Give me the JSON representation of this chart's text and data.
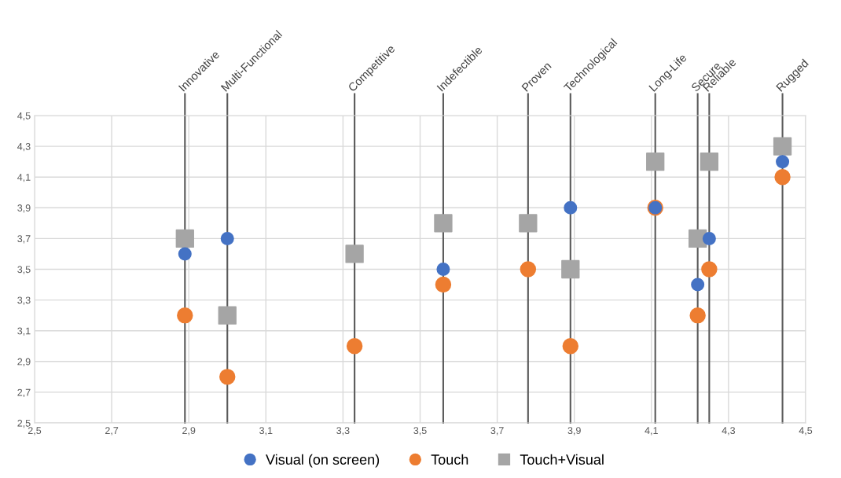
{
  "chart_data": {
    "type": "scatter",
    "x": [
      2.89,
      3.0,
      3.33,
      3.56,
      3.78,
      3.89,
      4.11,
      4.22,
      4.25,
      4.44
    ],
    "series": [
      {
        "name": "Visual (on screen)",
        "color": "#4472c4",
        "marker": "circle",
        "values": [
          3.6,
          3.7,
          null,
          3.5,
          null,
          3.9,
          3.9,
          3.4,
          3.7,
          4.2
        ]
      },
      {
        "name": "Touch",
        "color": "#ed7d31",
        "marker": "circle",
        "values": [
          3.2,
          2.8,
          3.0,
          3.4,
          3.5,
          3.0,
          3.9,
          3.2,
          3.5,
          4.1
        ]
      },
      {
        "name": "Touch+Visual",
        "color": "#a5a5a5",
        "marker": "square",
        "values": [
          3.7,
          3.2,
          3.6,
          3.8,
          3.8,
          3.5,
          4.2,
          3.7,
          4.2,
          4.3
        ]
      }
    ],
    "ref_lines": [
      {
        "axis": "x",
        "value": 2.89,
        "label": "Innovative",
        "color": "#595959"
      },
      {
        "axis": "x",
        "value": 3.0,
        "label": "Multi-Functional",
        "color": "#595959"
      },
      {
        "axis": "x",
        "value": 3.33,
        "label": "Competitive",
        "color": "#595959"
      },
      {
        "axis": "x",
        "value": 3.56,
        "label": "Indefectible",
        "color": "#595959"
      },
      {
        "axis": "x",
        "value": 3.78,
        "label": "Proven",
        "color": "#595959"
      },
      {
        "axis": "x",
        "value": 3.89,
        "label": "Technological",
        "color": "#595959"
      },
      {
        "axis": "x",
        "value": 4.11,
        "label": "Long-Life",
        "color": "#595959"
      },
      {
        "axis": "x",
        "value": 4.22,
        "label": "Secure",
        "color": "#595959"
      },
      {
        "axis": "x",
        "value": 4.25,
        "label": "Reliable",
        "color": "#595959"
      },
      {
        "axis": "x",
        "value": 4.44,
        "label": "Rugged",
        "color": "#595959"
      }
    ],
    "xlim": [
      2.5,
      4.5
    ],
    "xticks": [
      {
        "value": 2.5,
        "label": "2,5"
      },
      {
        "value": 2.7,
        "label": "2,7"
      },
      {
        "value": 2.9,
        "label": "2,9"
      },
      {
        "value": 3.1,
        "label": "3,1"
      },
      {
        "value": 3.3,
        "label": "3,3"
      },
      {
        "value": 3.5,
        "label": "3,5"
      },
      {
        "value": 3.7,
        "label": "3,7"
      },
      {
        "value": 3.9,
        "label": "3,9"
      },
      {
        "value": 4.1,
        "label": "4,1"
      },
      {
        "value": 4.3,
        "label": "4,3"
      },
      {
        "value": 4.5,
        "label": "4,5"
      }
    ],
    "ylim": [
      2.5,
      4.5
    ],
    "yticks": [
      {
        "value": 2.5,
        "label": "2,5"
      },
      {
        "value": 2.7,
        "label": "2,7"
      },
      {
        "value": 2.9,
        "label": "2,9"
      },
      {
        "value": 3.1,
        "label": "3,1"
      },
      {
        "value": 3.3,
        "label": "3,3"
      },
      {
        "value": 3.5,
        "label": "3,5"
      },
      {
        "value": 3.7,
        "label": "3,7"
      },
      {
        "value": 3.9,
        "label": "3,9"
      },
      {
        "value": 4.1,
        "label": "4,1"
      },
      {
        "value": 4.3,
        "label": "4,3"
      },
      {
        "value": 4.5,
        "label": "4,5"
      }
    ],
    "grid": true,
    "legend": "bottom"
  }
}
